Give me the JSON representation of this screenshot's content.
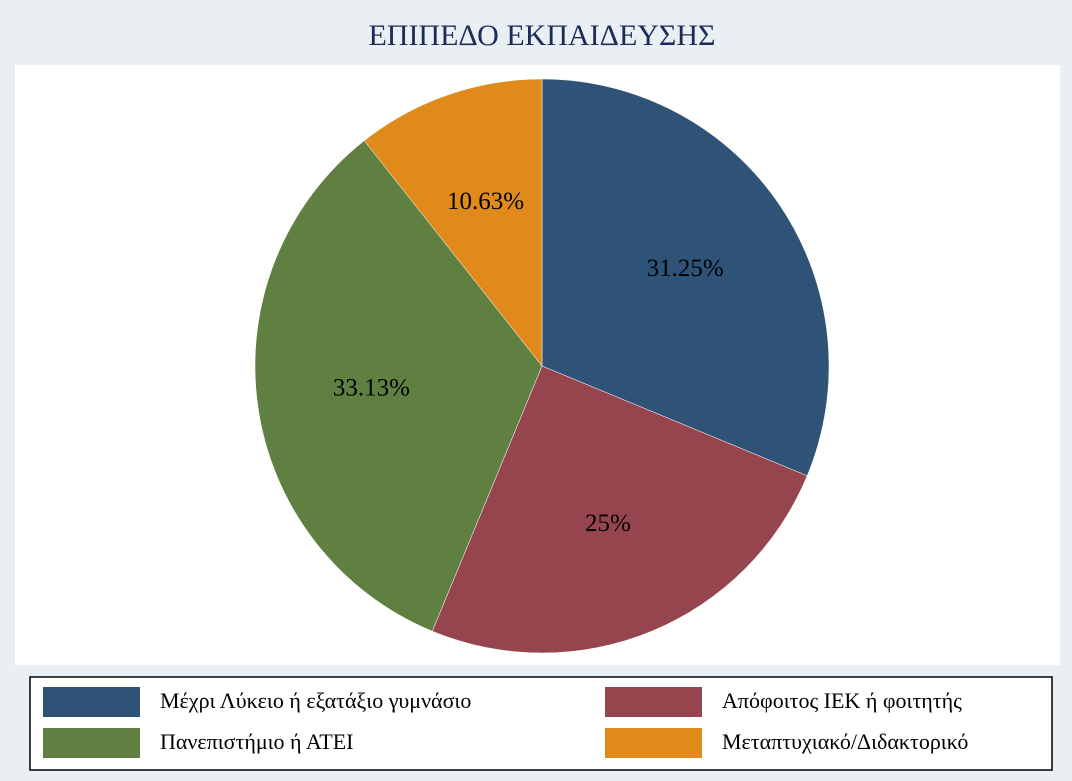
{
  "chart_data": {
    "type": "pie",
    "title": "ΕΠΙΠΕΔΟ ΕΚΠΑΙΔΕΥΣΗΣ",
    "categories": [
      "Μέχρι Λύκειο ή εξατάξιο γυμνάσιο",
      "Απόφοιτος ΙΕΚ ή φοιτητής",
      "Πανεπιστήμιο ή ΑΤΕΙ",
      "Μεταπτυχιακό/Διδακτορικό"
    ],
    "values": [
      31.25,
      25,
      33.13,
      10.63
    ],
    "value_labels": [
      "31.25%",
      "25%",
      "33.13%",
      "10.63%"
    ],
    "colors": [
      "#2e5377",
      "#96454f",
      "#5f8040",
      "#e08a1c"
    ],
    "legend": "bottom"
  }
}
